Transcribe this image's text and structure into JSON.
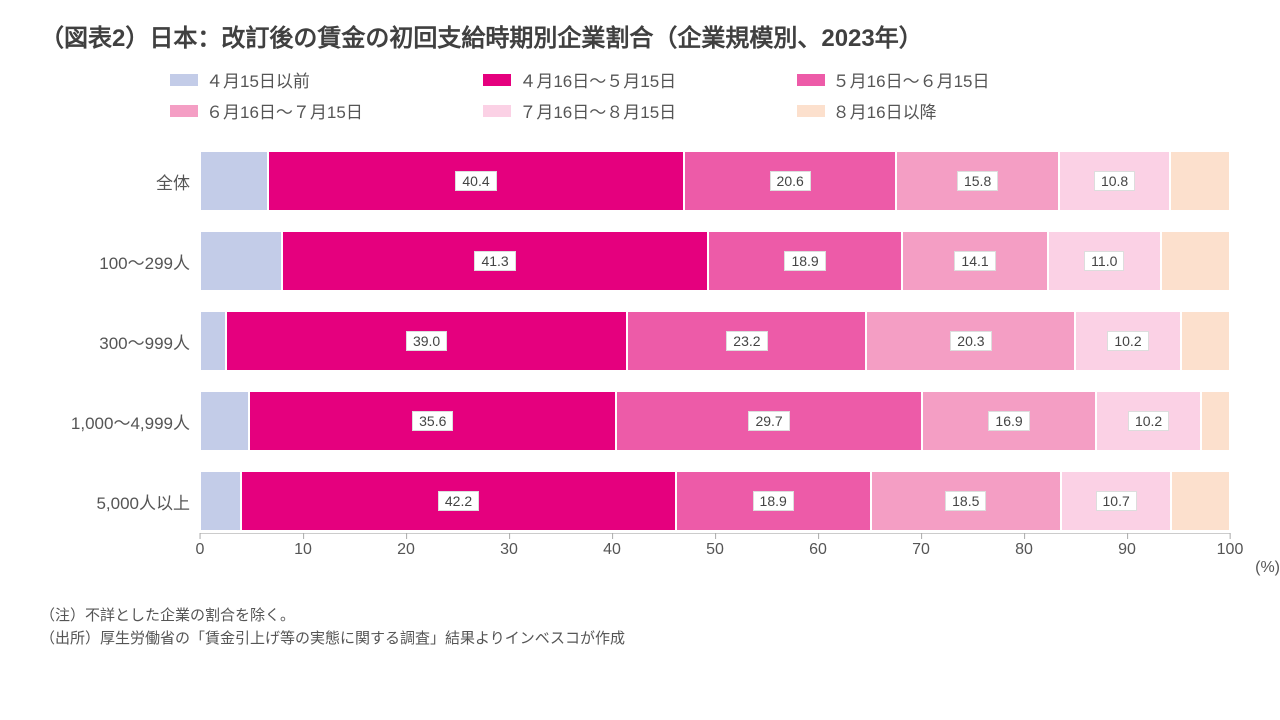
{
  "title": "（図表2）日本：改訂後の賃金の初回支給時期別企業割合（企業規模別、2023年）",
  "legend": [
    {
      "label": "４月15日以前",
      "color": "#c3cce8"
    },
    {
      "label": "４月16日～５月15日",
      "color": "#e5007e"
    },
    {
      "label": "５月16日～６月15日",
      "color": "#ed5ba8"
    },
    {
      "label": "６月16日～７月15日",
      "color": "#f49ec4"
    },
    {
      "label": "７月16日～８月15日",
      "color": "#fbd1e5"
    },
    {
      "label": "８月16日以降",
      "color": "#fce0cd"
    }
  ],
  "categories": [
    {
      "label": "全体",
      "segments": [
        {
          "v": 6.6,
          "show": false
        },
        {
          "v": 40.4,
          "show": true
        },
        {
          "v": 20.6,
          "show": true
        },
        {
          "v": 15.8,
          "show": true
        },
        {
          "v": 10.8,
          "show": true
        },
        {
          "v": 5.8,
          "show": false
        }
      ]
    },
    {
      "label": "100～299人",
      "segments": [
        {
          "v": 8.0,
          "show": false
        },
        {
          "v": 41.3,
          "show": true
        },
        {
          "v": 18.9,
          "show": true
        },
        {
          "v": 14.1,
          "show": true
        },
        {
          "v": 11.0,
          "show": true
        },
        {
          "v": 6.7,
          "show": false
        }
      ]
    },
    {
      "label": "300～999人",
      "segments": [
        {
          "v": 2.5,
          "show": false
        },
        {
          "v": 39.0,
          "show": true
        },
        {
          "v": 23.2,
          "show": true
        },
        {
          "v": 20.3,
          "show": true
        },
        {
          "v": 10.2,
          "show": true
        },
        {
          "v": 4.8,
          "show": false
        }
      ]
    },
    {
      "label": "1,000～4,999人",
      "segments": [
        {
          "v": 4.8,
          "show": false
        },
        {
          "v": 35.6,
          "show": true
        },
        {
          "v": 29.7,
          "show": true
        },
        {
          "v": 16.9,
          "show": true
        },
        {
          "v": 10.2,
          "show": true
        },
        {
          "v": 2.8,
          "show": false
        }
      ]
    },
    {
      "label": "5,000人以上",
      "segments": [
        {
          "v": 4.0,
          "show": false
        },
        {
          "v": 42.2,
          "show": true
        },
        {
          "v": 18.9,
          "show": true
        },
        {
          "v": 18.5,
          "show": true
        },
        {
          "v": 10.7,
          "show": true
        },
        {
          "v": 5.7,
          "show": false
        }
      ]
    }
  ],
  "axis": {
    "min": 0,
    "max": 100,
    "step": 10,
    "ticks": [
      "0",
      "10",
      "20",
      "30",
      "40",
      "50",
      "60",
      "70",
      "80",
      "90",
      "100"
    ],
    "unit": "(%)"
  },
  "notes": {
    "line1": "（注）不詳とした企業の割合を除く。",
    "line2": "（出所）厚生労働省の「賃金引上げ等の実態に関する調査」結果よりインベスコが作成"
  }
}
